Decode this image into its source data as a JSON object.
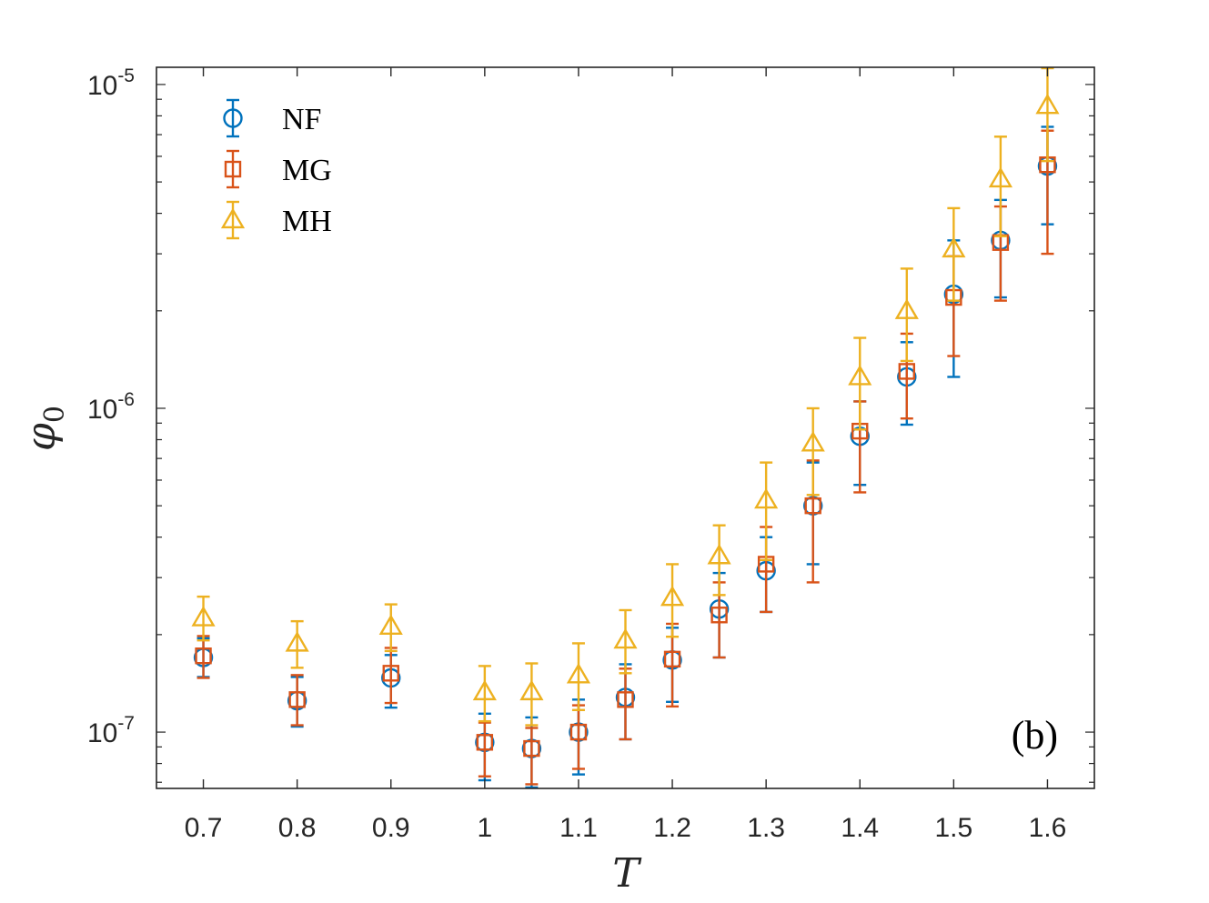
{
  "chart_data": {
    "type": "scatter",
    "xlabel": "T",
    "ylabel": "φ",
    "ylabel_subscript": "0",
    "xlim": [
      0.65,
      1.65
    ],
    "ylim": [
      6.7e-08,
      1.13e-05
    ],
    "yscale": "log",
    "x_ticks": [
      "0.7",
      "0.8",
      "0.9",
      "1",
      "1.1",
      "1.2",
      "1.3",
      "1.4",
      "1.5",
      "1.6"
    ],
    "y_ticks": [
      {
        "value": 1e-07,
        "base": "10",
        "exp": "-7"
      },
      {
        "value": 1e-06,
        "base": "10",
        "exp": "-6"
      },
      {
        "value": 1e-05,
        "base": "10",
        "exp": "-5"
      }
    ],
    "legend_position": "top-left",
    "grid": false,
    "annotation": "(b)",
    "series": [
      {
        "name": "NF",
        "marker": "circle",
        "color": "#0072BD",
        "x": [
          0.7,
          0.8,
          0.9,
          1.0,
          1.05,
          1.1,
          1.15,
          1.2,
          1.25,
          1.3,
          1.35,
          1.4,
          1.45,
          1.5,
          1.55,
          1.6
        ],
        "y": [
          1.7e-07,
          1.25e-07,
          1.47e-07,
          9.3e-08,
          8.9e-08,
          1e-07,
          1.28e-07,
          1.67e-07,
          2.4e-07,
          3.15e-07,
          5e-07,
          8.2e-07,
          1.25e-06,
          2.25e-06,
          3.3e-06,
          5.6e-06
        ],
        "y_low": [
          1.48e-07,
          1.04e-07,
          1.19e-07,
          7.1e-08,
          6.7e-08,
          7.4e-08,
          9.5e-08,
          1.24e-07,
          1.7e-07,
          2.35e-07,
          3.3e-07,
          5.8e-07,
          8.9e-07,
          1.25e-06,
          2.2e-06,
          3.7e-06
        ],
        "y_high": [
          1.95e-07,
          1.48e-07,
          1.73e-07,
          1.14e-07,
          1.11e-07,
          1.26e-07,
          1.62e-07,
          2.1e-07,
          3.1e-07,
          4e-07,
          6.8e-07,
          1.05e-06,
          1.6e-06,
          3.3e-06,
          4.4e-06,
          7.4e-06
        ]
      },
      {
        "name": "MG",
        "marker": "square",
        "color": "#D95319",
        "x": [
          0.7,
          0.8,
          0.9,
          1.0,
          1.05,
          1.1,
          1.15,
          1.2,
          1.25,
          1.3,
          1.35,
          1.4,
          1.45,
          1.5,
          1.55,
          1.6
        ],
        "y": [
          1.72e-07,
          1.26e-07,
          1.52e-07,
          9.3e-08,
          8.9e-08,
          1e-07,
          1.26e-07,
          1.68e-07,
          2.3e-07,
          3.3e-07,
          5e-07,
          8.5e-07,
          1.3e-06,
          2.2e-06,
          3.25e-06,
          5.65e-06
        ],
        "y_low": [
          1.47e-07,
          1.05e-07,
          1.23e-07,
          7.3e-08,
          6.9e-08,
          7.7e-08,
          9.5e-08,
          1.2e-07,
          1.7e-07,
          2.35e-07,
          2.9e-07,
          5.5e-07,
          9.3e-07,
          1.45e-06,
          2.15e-06,
          3e-06
        ],
        "y_high": [
          1.98e-07,
          1.5e-07,
          1.82e-07,
          1.07e-07,
          1.03e-07,
          1.21e-07,
          1.57e-07,
          2.16e-07,
          2.9e-07,
          4.3e-07,
          6.9e-07,
          1.05e-06,
          1.7e-06,
          2.95e-06,
          4.2e-06,
          7.2e-06
        ]
      },
      {
        "name": "MH",
        "marker": "triangle",
        "color": "#EDB120",
        "x": [
          0.7,
          0.8,
          0.9,
          1.0,
          1.05,
          1.1,
          1.15,
          1.2,
          1.25,
          1.3,
          1.35,
          1.4,
          1.45,
          1.5,
          1.55,
          1.6
        ],
        "y": [
          2.25e-07,
          1.88e-07,
          2.12e-07,
          1.33e-07,
          1.33e-07,
          1.5e-07,
          1.92e-07,
          2.6e-07,
          3.5e-07,
          5.2e-07,
          7.8e-07,
          1.25e-06,
          2e-06,
          3.1e-06,
          5.1e-06,
          8.6e-06
        ],
        "y_low": [
          1.92e-07,
          1.58e-07,
          1.78e-07,
          1.08e-07,
          1.05e-07,
          1.17e-07,
          1.52e-07,
          1.97e-07,
          2.65e-07,
          3.4e-07,
          5.4e-07,
          8.6e-07,
          1.4e-06,
          2.15e-06,
          3.4e-06,
          5.8e-06
        ],
        "y_high": [
          2.62e-07,
          2.2e-07,
          2.48e-07,
          1.6e-07,
          1.63e-07,
          1.88e-07,
          2.38e-07,
          3.3e-07,
          4.35e-07,
          6.8e-07,
          1e-06,
          1.65e-06,
          2.7e-06,
          4.15e-06,
          6.9e-06,
          1.13e-05
        ]
      }
    ]
  }
}
